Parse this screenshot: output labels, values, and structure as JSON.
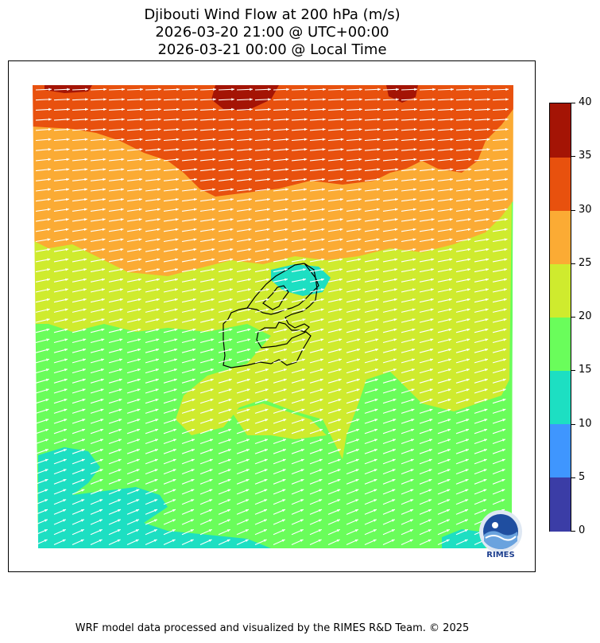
{
  "title_lines": [
    "Djibouti Wind Flow at 200 hPa (m/s)",
    "2026-03-20 21:00 @ UTC+00:00",
    "2026-03-21 00:00 @ Local Time"
  ],
  "footer": "WRF model data processed and visualized by the RIMES R&D Team. © 2025",
  "logo_text": "RIMES",
  "colorbar": {
    "ticks": [
      "0",
      "5",
      "10",
      "15",
      "20",
      "25",
      "30",
      "35",
      "40"
    ],
    "levels": [
      0,
      5,
      10,
      15,
      20,
      25,
      30,
      35,
      40
    ],
    "colors": [
      "#3b3da6",
      "#3f96fe",
      "#1ddfc2",
      "#6afd5b",
      "#cfeb2e",
      "#fbab34",
      "#e8510e",
      "#a41405"
    ]
  },
  "wind": {
    "direction": "westerly",
    "arrow_color": "#ffffff"
  }
}
